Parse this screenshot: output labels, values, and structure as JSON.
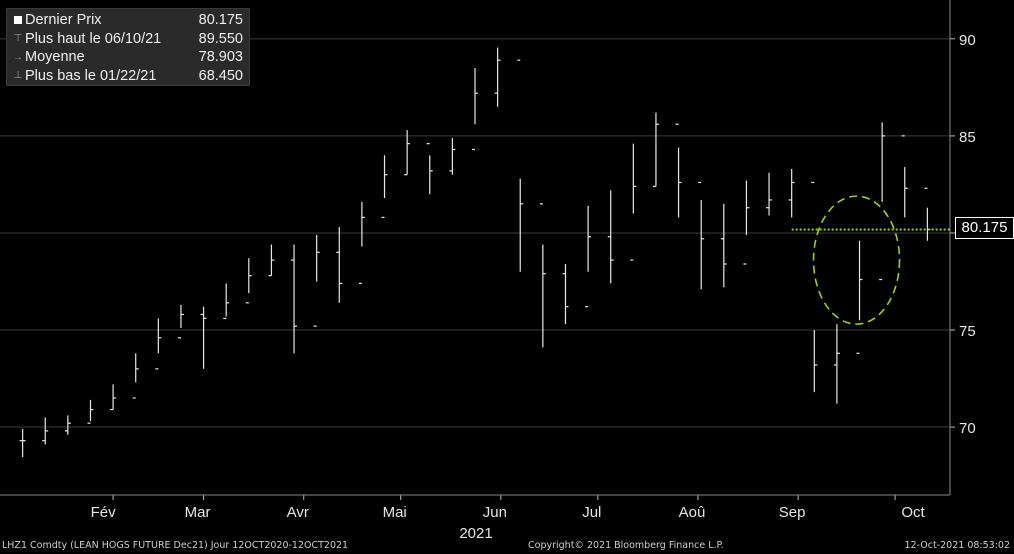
{
  "legend": {
    "last_label": "Dernier Prix",
    "last_value": "80.175",
    "high_label": "Plus haut le 06/10/21",
    "high_value": "89.550",
    "avg_label": "Moyenne",
    "avg_value": "78.903",
    "low_label": "Plus bas le 01/22/21",
    "low_value": "68.450"
  },
  "last_badge": "80.175",
  "footer": {
    "left": "LHZ1 Comdty (LEAN HOGS FUTURE  Dec21)  Jour 12OCT2020-12OCT2021",
    "center": "Copyright© 2021 Bloomberg Finance L.P.",
    "right": "12-Oct-2021 08:53:02"
  },
  "colors": {
    "background": "#000000",
    "bars": "#e8e8e8",
    "grid": "#3c3c3c",
    "highlight": "#9acd32"
  },
  "chart_data": {
    "type": "ohlc",
    "title": "",
    "ylim": [
      66.5,
      92
    ],
    "yticks": [
      70,
      75,
      80,
      85,
      90
    ],
    "grid": true,
    "x_tick_labels": [
      "Fév",
      "Mar",
      "Avr",
      "Mai",
      "Jun",
      "Jul",
      "Aoû",
      "Sep",
      "Oct"
    ],
    "x_year_label": "2021",
    "reference_line": 80.175,
    "series": [
      {
        "name": "LHZ1",
        "x": [
          "2021-01-04",
          "2021-01-11",
          "2021-01-18",
          "2021-01-25",
          "2021-02-01",
          "2021-02-08",
          "2021-02-15",
          "2021-02-22",
          "2021-03-01",
          "2021-03-08",
          "2021-03-15",
          "2021-03-22",
          "2021-03-29",
          "2021-04-05",
          "2021-04-12",
          "2021-04-19",
          "2021-04-26",
          "2021-05-03",
          "2021-05-10",
          "2021-05-17",
          "2021-05-24",
          "2021-05-31",
          "2021-06-07",
          "2021-06-14",
          "2021-06-21",
          "2021-06-28",
          "2021-07-05",
          "2021-07-12",
          "2021-07-19",
          "2021-07-26",
          "2021-08-02",
          "2021-08-09",
          "2021-08-16",
          "2021-08-23",
          "2021-08-30",
          "2021-09-06",
          "2021-09-13",
          "2021-09-20",
          "2021-09-27",
          "2021-10-04",
          "2021-10-11"
        ],
        "close": [
          69.3,
          69.8,
          70.2,
          70.9,
          71.5,
          73.0,
          74.6,
          75.8,
          75.6,
          76.4,
          77.8,
          78.6,
          75.2,
          79.0,
          77.4,
          80.8,
          83.0,
          84.6,
          83.2,
          84.3,
          87.2,
          88.9,
          81.5,
          77.9,
          76.2,
          79.8,
          78.6,
          82.4,
          85.6,
          82.6,
          79.7,
          78.4,
          81.3,
          81.7,
          82.6,
          73.2,
          73.8,
          77.6,
          85.0,
          82.3,
          80.175
        ],
        "high": [
          69.9,
          70.5,
          70.6,
          71.4,
          72.2,
          73.8,
          75.6,
          76.3,
          76.2,
          77.4,
          78.7,
          79.4,
          79.4,
          79.9,
          80.3,
          81.6,
          84.0,
          85.3,
          84.0,
          84.9,
          88.5,
          89.55,
          82.8,
          79.4,
          78.4,
          81.4,
          82.2,
          84.6,
          86.2,
          84.4,
          81.7,
          81.5,
          82.7,
          83.1,
          83.3,
          75.0,
          75.3,
          79.6,
          85.7,
          83.4,
          81.3
        ],
        "low": [
          68.45,
          69.1,
          69.6,
          70.3,
          70.9,
          72.3,
          73.8,
          75.1,
          73.0,
          75.7,
          76.9,
          77.8,
          73.8,
          77.5,
          76.4,
          79.3,
          81.8,
          83.0,
          82.0,
          83.0,
          85.6,
          86.5,
          78.0,
          74.1,
          75.3,
          78.0,
          77.4,
          81.0,
          82.4,
          80.8,
          77.1,
          77.2,
          79.9,
          80.9,
          80.8,
          71.8,
          71.2,
          75.5,
          81.6,
          80.8,
          79.6
        ]
      }
    ]
  }
}
